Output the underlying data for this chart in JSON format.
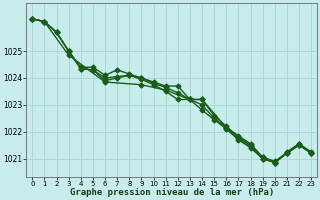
{
  "xlabel": "Graphe pression niveau de la mer (hPa)",
  "xlim": [
    -0.5,
    23.5
  ],
  "ylim": [
    1020.3,
    1026.8
  ],
  "yticks": [
    1021,
    1022,
    1023,
    1024,
    1025
  ],
  "xticks": [
    0,
    1,
    2,
    3,
    4,
    5,
    6,
    7,
    8,
    9,
    10,
    11,
    12,
    13,
    14,
    15,
    16,
    17,
    18,
    19,
    20,
    21,
    22,
    23
  ],
  "bg_color": "#c8ecec",
  "grid_color": "#a8d8d8",
  "line_color": "#1a5c1a",
  "series1": [
    1026.2,
    1026.1,
    1025.7,
    1025.0,
    1024.4,
    1024.4,
    1024.1,
    1024.3,
    1024.15,
    1024.0,
    1023.85,
    1023.7,
    1023.7,
    1023.2,
    1023.2,
    1022.6,
    1022.2,
    1021.8,
    1021.5,
    1021.05,
    1020.9,
    1021.2,
    1021.55,
    1021.25
  ],
  "series2": [
    1026.2,
    1026.1,
    1025.7,
    1025.0,
    1024.35,
    1024.3,
    1023.9,
    1024.0,
    1024.1,
    1023.95,
    1023.75,
    1023.5,
    1023.2,
    1023.2,
    1022.8,
    1022.45,
    1022.1,
    1021.7,
    1021.4,
    1021.0,
    1020.85,
    1021.2,
    1021.5,
    1021.2
  ],
  "series3": [
    1026.2,
    1026.1,
    1025.7,
    1025.0,
    1024.35,
    1024.3,
    1024.0,
    1024.05,
    1024.1,
    1024.0,
    1023.8,
    1023.65,
    1023.45,
    1023.2,
    1023.0,
    1022.5,
    1022.15,
    1021.75,
    1021.45,
    1021.0,
    1020.85,
    1021.2,
    1021.5,
    1021.2
  ],
  "series4_sparse": {
    "x": [
      0,
      1,
      3,
      6,
      9,
      11,
      13,
      14,
      16,
      17,
      18,
      19,
      20,
      21,
      22,
      23
    ],
    "y": [
      1026.2,
      1026.1,
      1024.85,
      1023.85,
      1023.75,
      1023.55,
      1023.2,
      1023.2,
      1022.15,
      1021.85,
      1021.55,
      1021.05,
      1020.85,
      1021.25,
      1021.55,
      1021.2
    ]
  },
  "marker": "D",
  "marker_size": 2.5,
  "line_width": 1.0
}
